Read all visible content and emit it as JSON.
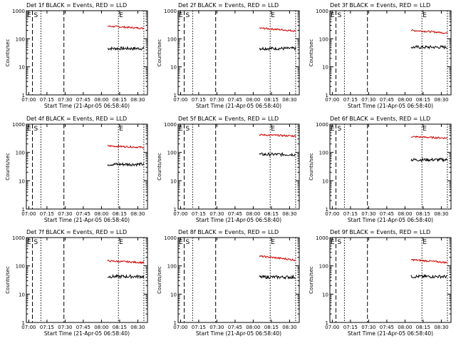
{
  "chart_data": [
    {
      "type": "line",
      "title": "Det 1f BLACK = Events, RED = LLD",
      "xlabel": "Start Time (21-Apr-05 06:58:40)",
      "ylabel": "Counts/sec",
      "ylog": true,
      "ylim": [
        1,
        1000
      ],
      "yticks": [
        "1",
        "10",
        "100",
        "1000"
      ],
      "xticks": [
        "07:00",
        "07:15",
        "07:30",
        "07:45",
        "08:00",
        "08:15",
        "08:30"
      ],
      "markers": [
        "E",
        "S",
        "E"
      ],
      "series": [
        {
          "name": "BLACK = Events",
          "color": "#000000",
          "level": 45,
          "x_start": "08:05",
          "x_end": "08:35"
        },
        {
          "name": "RED = LLD",
          "color": "#d00000",
          "level_start": 280,
          "level_end": 235,
          "x_start": "08:05",
          "x_end": "08:35"
        }
      ]
    },
    {
      "type": "line",
      "title": "Det 2f BLACK = Events, RED = LLD",
      "xlabel": "Start Time (21-Apr-05 06:58:40)",
      "ylabel": "Counts/sec",
      "ylog": true,
      "ylim": [
        1,
        1000
      ],
      "yticks": [
        "1",
        "10",
        "100",
        "1000"
      ],
      "xticks": [
        "07:00",
        "07:15",
        "07:30",
        "07:45",
        "08:00",
        "08:15",
        "08:30"
      ],
      "markers": [
        "E",
        "S",
        "E"
      ],
      "series": [
        {
          "name": "BLACK = Events",
          "color": "#000000",
          "level": 45,
          "x_start": "08:05",
          "x_end": "08:35"
        },
        {
          "name": "RED = LLD",
          "color": "#d00000",
          "level_start": 240,
          "level_end": 190,
          "x_start": "08:05",
          "x_end": "08:35"
        }
      ]
    },
    {
      "type": "line",
      "title": "Det 3f BLACK = Events, RED = LLD",
      "xlabel": "Start Time (21-Apr-05 06:58:40)",
      "ylabel": "Counts/sec",
      "ylog": true,
      "ylim": [
        1,
        1000
      ],
      "yticks": [
        "1",
        "10",
        "100",
        "1000"
      ],
      "xticks": [
        "07:00",
        "07:15",
        "07:30",
        "07:45",
        "08:00",
        "08:15",
        "08:30"
      ],
      "markers": [
        "E",
        "S",
        "E"
      ],
      "series": [
        {
          "name": "BLACK = Events",
          "color": "#000000",
          "level": 50,
          "x_start": "08:05",
          "x_end": "08:35"
        },
        {
          "name": "RED = LLD",
          "color": "#d00000",
          "level_start": 200,
          "level_end": 160,
          "x_start": "08:05",
          "x_end": "08:35"
        }
      ]
    },
    {
      "type": "line",
      "title": "Det 4f BLACK = Events, RED = LLD",
      "xlabel": "Start Time (21-Apr-05 06:58:40)",
      "ylabel": "Counts/sec",
      "ylog": true,
      "ylim": [
        1,
        1000
      ],
      "yticks": [
        "1",
        "10",
        "100",
        "1000"
      ],
      "xticks": [
        "07:00",
        "07:15",
        "07:30",
        "07:45",
        "08:00",
        "08:15",
        "08:30"
      ],
      "markers": [
        "E",
        "S",
        "E"
      ],
      "series": [
        {
          "name": "BLACK = Events",
          "color": "#000000",
          "level": 38,
          "x_start": "08:05",
          "x_end": "08:35"
        },
        {
          "name": "RED = LLD",
          "color": "#d00000",
          "level_start": 170,
          "level_end": 150,
          "x_start": "08:05",
          "x_end": "08:35"
        }
      ]
    },
    {
      "type": "line",
      "title": "Det 5f BLACK = Events, RED = LLD",
      "xlabel": "Start Time (21-Apr-05 06:58:40)",
      "ylabel": "Counts/sec",
      "ylog": true,
      "ylim": [
        1,
        1000
      ],
      "yticks": [
        "1",
        "10",
        "100",
        "1000"
      ],
      "xticks": [
        "07:00",
        "07:15",
        "07:30",
        "07:45",
        "08:00",
        "08:15",
        "08:30"
      ],
      "markers": [
        "E",
        "S",
        "E"
      ],
      "series": [
        {
          "name": "BLACK = Events",
          "color": "#000000",
          "level": 85,
          "x_start": "08:05",
          "x_end": "08:35"
        },
        {
          "name": "RED = LLD",
          "color": "#d00000",
          "level_start": 420,
          "level_end": 380,
          "x_start": "08:05",
          "x_end": "08:35"
        }
      ]
    },
    {
      "type": "line",
      "title": "Det 6f BLACK = Events, RED = LLD",
      "xlabel": "Start Time (21-Apr-05 06:58:40)",
      "ylabel": "Counts/sec",
      "ylog": true,
      "ylim": [
        1,
        1000
      ],
      "yticks": [
        "1",
        "10",
        "100",
        "1000"
      ],
      "xticks": [
        "07:00",
        "07:15",
        "07:30",
        "07:45",
        "08:00",
        "08:15",
        "08:30"
      ],
      "markers": [
        "E",
        "S",
        "E"
      ],
      "series": [
        {
          "name": "BLACK = Events",
          "color": "#000000",
          "level": 55,
          "x_start": "08:05",
          "x_end": "08:35"
        },
        {
          "name": "RED = LLD",
          "color": "#d00000",
          "level_start": 360,
          "level_end": 320,
          "x_start": "08:05",
          "x_end": "08:35"
        }
      ]
    },
    {
      "type": "line",
      "title": "Det 7f BLACK = Events, RED = LLD",
      "xlabel": "Start Time (21-Apr-05 06:58:40)",
      "ylabel": "Counts/sec",
      "ylog": true,
      "ylim": [
        1,
        1000
      ],
      "yticks": [
        "1",
        "10",
        "100",
        "1000"
      ],
      "xticks": [
        "07:00",
        "07:15",
        "07:30",
        "07:45",
        "08:00",
        "08:15",
        "08:30"
      ],
      "markers": [
        "E",
        "S",
        "E"
      ],
      "series": [
        {
          "name": "BLACK = Events",
          "color": "#000000",
          "level": 42,
          "x_start": "08:05",
          "x_end": "08:35"
        },
        {
          "name": "RED = LLD",
          "color": "#d00000",
          "level_start": 150,
          "level_end": 130,
          "x_start": "08:05",
          "x_end": "08:35"
        }
      ]
    },
    {
      "type": "line",
      "title": "Det 8f BLACK = Events, RED = LLD",
      "xlabel": "Start Time (21-Apr-05 06:58:40)",
      "ylabel": "Counts/sec",
      "ylog": true,
      "ylim": [
        1,
        1000
      ],
      "yticks": [
        "1",
        "10",
        "100",
        "1000"
      ],
      "xticks": [
        "07:00",
        "07:15",
        "07:30",
        "07:45",
        "08:00",
        "08:15",
        "08:30"
      ],
      "markers": [
        "E",
        "S",
        "E"
      ],
      "series": [
        {
          "name": "BLACK = Events",
          "color": "#000000",
          "level": 40,
          "x_start": "08:05",
          "x_end": "08:35"
        },
        {
          "name": "RED = LLD",
          "color": "#d00000",
          "level_start": 220,
          "level_end": 160,
          "x_start": "08:05",
          "x_end": "08:35"
        }
      ]
    },
    {
      "type": "line",
      "title": "Det 9f BLACK = Events, RED = LLD",
      "xlabel": "Start Time (21-Apr-05 06:58:40)",
      "ylabel": "Counts/sec",
      "ylog": true,
      "ylim": [
        1,
        1000
      ],
      "yticks": [
        "1",
        "10",
        "100",
        "1000"
      ],
      "xticks": [
        "07:00",
        "07:15",
        "07:30",
        "07:45",
        "08:00",
        "08:15",
        "08:30"
      ],
      "markers": [
        "E",
        "S",
        "E"
      ],
      "series": [
        {
          "name": "BLACK = Events",
          "color": "#000000",
          "level": 42,
          "x_start": "08:05",
          "x_end": "08:35"
        },
        {
          "name": "RED = LLD",
          "color": "#d00000",
          "level_start": 165,
          "level_end": 130,
          "x_start": "08:05",
          "x_end": "08:35"
        }
      ]
    }
  ]
}
